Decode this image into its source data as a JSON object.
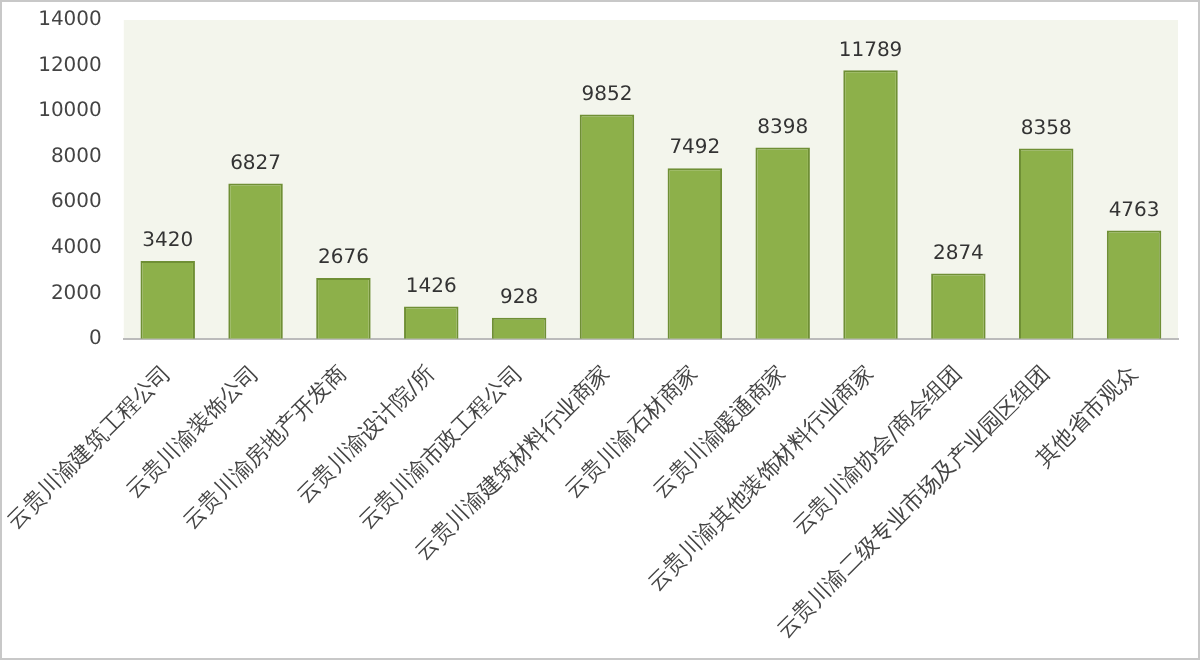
{
  "chart_data": {
    "type": "bar",
    "categories": [
      "云贵川渝建筑工程公司",
      "云贵川渝装饰公司",
      "云贵川渝房地产开发商",
      "云贵川渝设计院/所",
      "云贵川渝市政工程公司",
      "云贵川渝建筑材料行业商家",
      "云贵川渝石材商家",
      "云贵川渝暖通商家",
      "云贵川渝其他装饰材料行业商家",
      "云贵川渝协会/商会组团",
      "云贵川渝二级专业市场及产业园区组团",
      "其他省市观众"
    ],
    "values": [
      3420,
      6827,
      2676,
      1426,
      928,
      9852,
      7492,
      8398,
      11789,
      2874,
      8358,
      4763
    ],
    "color": "#8db04a",
    "ylim": [
      0,
      14000
    ],
    "yticks": [
      0,
      2000,
      4000,
      6000,
      8000,
      10000,
      12000,
      14000
    ],
    "grid": false,
    "legend": false,
    "data_labels": true
  }
}
